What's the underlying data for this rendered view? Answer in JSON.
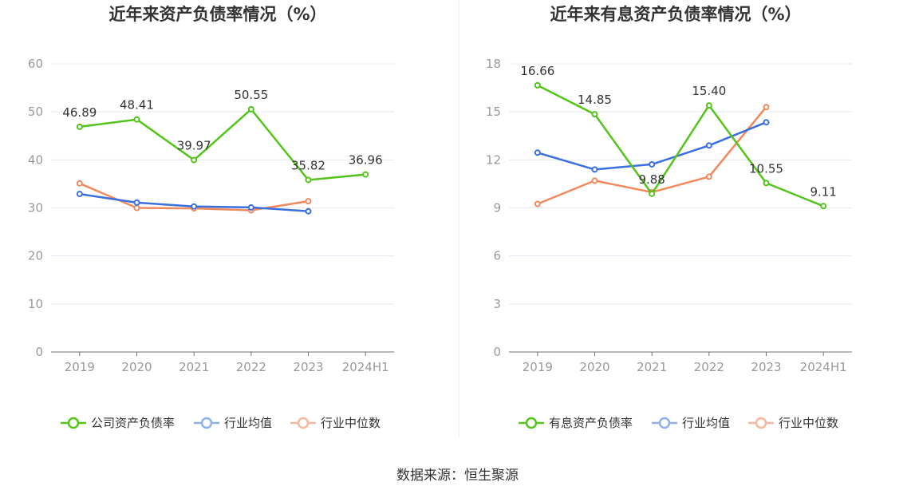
{
  "chart_data": [
    {
      "type": "line",
      "title": "近年来资产负债率情况（%）",
      "categories": [
        "2019",
        "2020",
        "2021",
        "2022",
        "2023",
        "2024H1"
      ],
      "ylim": [
        0,
        60
      ],
      "yticks": [
        0,
        10,
        20,
        30,
        40,
        50,
        60
      ],
      "grid": true,
      "legend_position": "bottom",
      "series": [
        {
          "name": "公司资产负债率",
          "color": "#52c41a",
          "labels": true,
          "values": [
            46.89,
            48.41,
            39.97,
            50.55,
            35.82,
            36.96
          ],
          "value_labels": [
            "46.89",
            "48.41",
            "39.97",
            "50.55",
            "35.82",
            "36.96"
          ]
        },
        {
          "name": "行业均值",
          "color": "#3a6fe0",
          "labels": false,
          "values": [
            32.9,
            31.1,
            30.3,
            30.1,
            29.3,
            null
          ]
        },
        {
          "name": "行业中位数",
          "color": "#f08a5d",
          "labels": false,
          "values": [
            35.1,
            30.0,
            29.9,
            29.5,
            31.4,
            null
          ]
        }
      ]
    },
    {
      "type": "line",
      "title": "近年来有息资产负债率情况（%）",
      "categories": [
        "2019",
        "2020",
        "2021",
        "2022",
        "2023",
        "2024H1"
      ],
      "ylim": [
        0,
        18
      ],
      "yticks": [
        0,
        3,
        6,
        9,
        12,
        15,
        18
      ],
      "grid": true,
      "legend_position": "bottom",
      "series": [
        {
          "name": "有息资产负债率",
          "color": "#52c41a",
          "labels": true,
          "values": [
            16.66,
            14.85,
            9.88,
            15.4,
            10.55,
            9.11
          ],
          "value_labels": [
            "16.66",
            "14.85",
            "9.88",
            "15.40",
            "10.55",
            "9.11"
          ]
        },
        {
          "name": "行业均值",
          "color": "#3a6fe0",
          "labels": false,
          "values": [
            12.45,
            11.4,
            11.72,
            12.9,
            14.35,
            null
          ]
        },
        {
          "name": "行业中位数",
          "color": "#f08a5d",
          "labels": false,
          "values": [
            9.25,
            10.7,
            9.98,
            10.95,
            15.3,
            null
          ]
        }
      ]
    }
  ],
  "source": "数据来源：恒生聚源"
}
